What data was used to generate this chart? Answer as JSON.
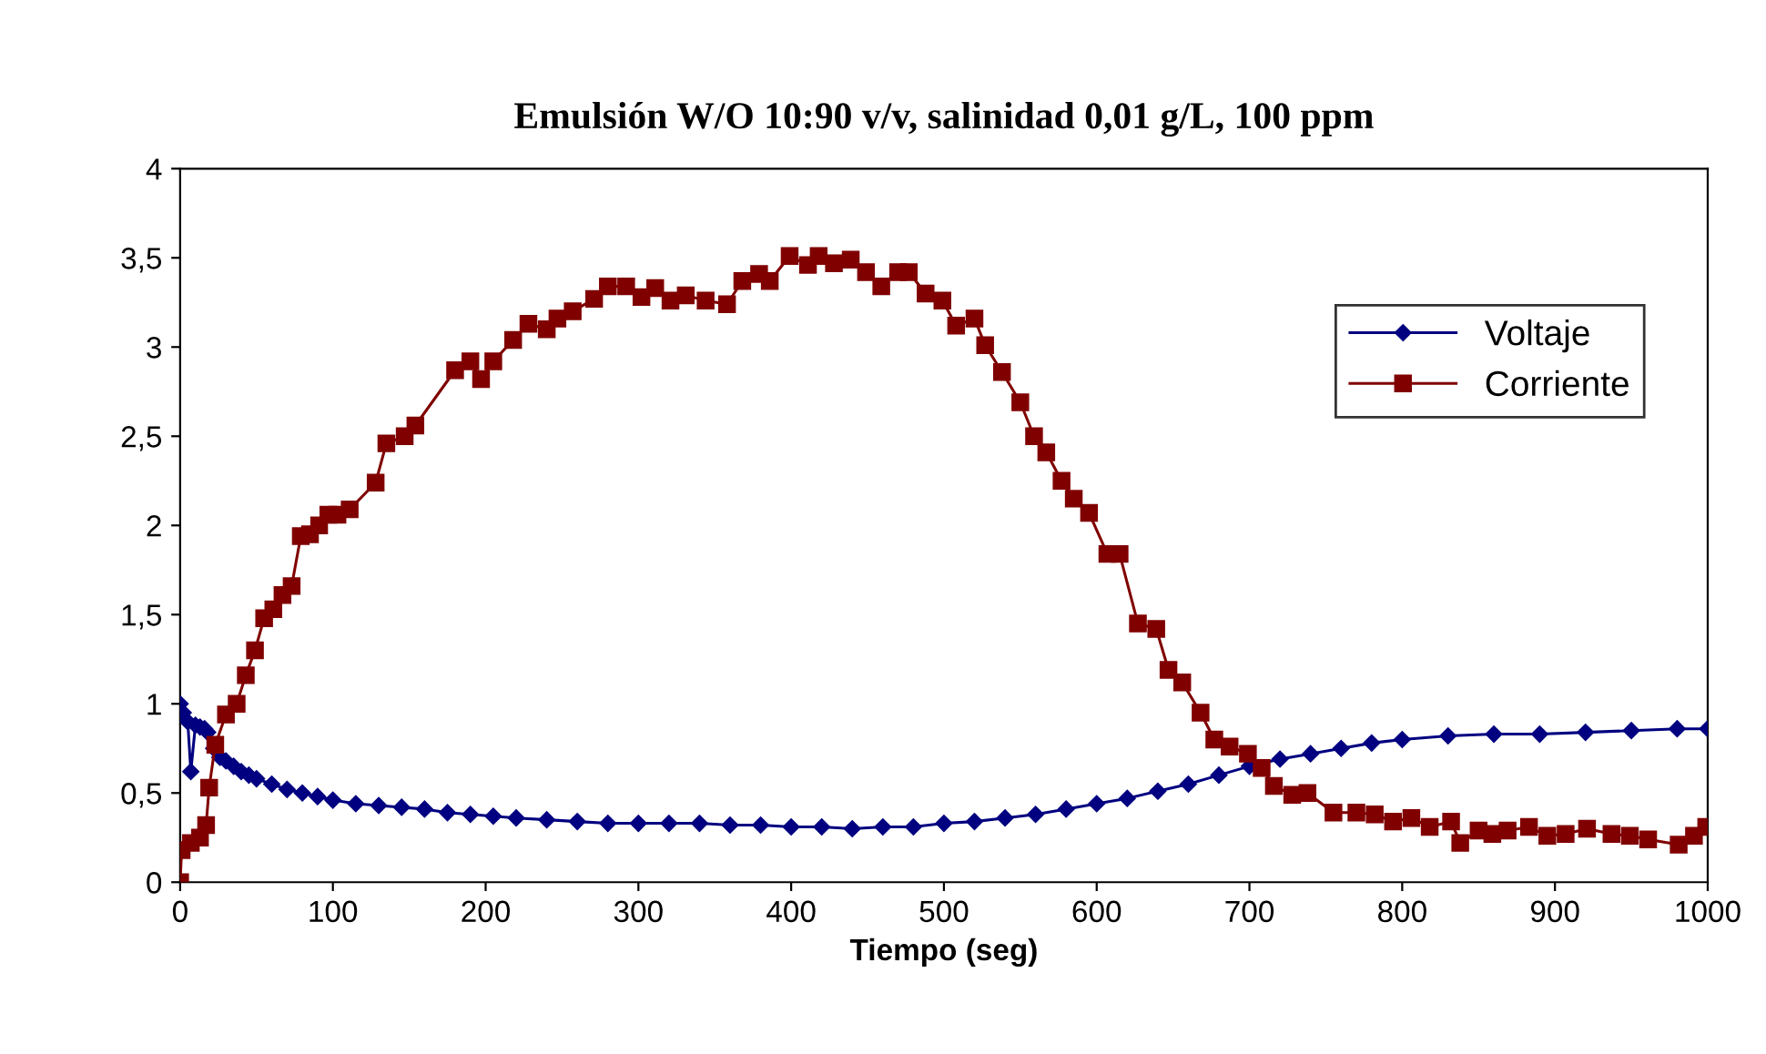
{
  "chart_data": {
    "type": "line",
    "title": "Emulsión W/O 10:90 v/v, salinidad 0,01 g/L, 100 ppm",
    "xlabel": "Tiempo (seg)",
    "xlim": [
      0,
      1000
    ],
    "xticks": [
      0,
      100,
      200,
      300,
      400,
      500,
      600,
      700,
      800,
      900,
      1000
    ],
    "ylim": [
      0,
      4
    ],
    "yticks": [
      0,
      {
        "value": 0.5,
        "label": "0,5"
      },
      1,
      {
        "value": 1.5,
        "label": "1,5"
      },
      2,
      {
        "value": 2.5,
        "label": "2,5"
      },
      3,
      {
        "value": 3.5,
        "label": "3,5"
      },
      4
    ],
    "legend": "right",
    "grid": false,
    "series": [
      {
        "name": "Voltaje",
        "color": "#000080",
        "marker": "diamond",
        "x": [
          0,
          2,
          5,
          7,
          10,
          13,
          16,
          18,
          22,
          26,
          30,
          35,
          40,
          45,
          50,
          60,
          70,
          80,
          90,
          100,
          115,
          130,
          145,
          160,
          175,
          190,
          205,
          220,
          240,
          260,
          280,
          300,
          320,
          340,
          360,
          380,
          400,
          420,
          440,
          460,
          480,
          500,
          520,
          540,
          560,
          580,
          600,
          620,
          640,
          660,
          680,
          700,
          720,
          740,
          760,
          780,
          800,
          830,
          860,
          890,
          920,
          950,
          980,
          1000
        ],
        "values": [
          1.0,
          0.95,
          0.9,
          0.62,
          0.88,
          0.87,
          0.86,
          0.84,
          0.75,
          0.7,
          0.68,
          0.65,
          0.62,
          0.6,
          0.58,
          0.55,
          0.52,
          0.5,
          0.48,
          0.46,
          0.44,
          0.43,
          0.42,
          0.41,
          0.39,
          0.38,
          0.37,
          0.36,
          0.35,
          0.34,
          0.33,
          0.33,
          0.33,
          0.33,
          0.32,
          0.32,
          0.31,
          0.31,
          0.3,
          0.31,
          0.31,
          0.33,
          0.34,
          0.36,
          0.38,
          0.41,
          0.44,
          0.47,
          0.51,
          0.55,
          0.6,
          0.65,
          0.69,
          0.72,
          0.75,
          0.78,
          0.8,
          0.82,
          0.83,
          0.83,
          0.84,
          0.85,
          0.86,
          0.86
        ]
      },
      {
        "name": "Corriente",
        "color": "#800000",
        "marker": "square",
        "x": [
          0,
          1,
          7,
          13,
          17,
          19,
          23,
          30,
          37,
          43,
          49,
          55,
          61,
          67,
          73,
          79,
          85,
          91,
          97,
          103,
          111,
          128,
          135,
          147,
          154,
          180,
          190,
          197,
          205,
          218,
          228,
          240,
          247,
          257,
          271,
          280,
          292,
          302,
          311,
          321,
          331,
          344,
          358,
          368,
          379,
          386,
          399,
          411,
          418,
          428,
          439,
          449,
          459,
          470,
          477,
          488,
          499,
          508,
          520,
          527,
          538,
          550,
          559,
          567,
          577,
          585,
          595,
          607,
          615,
          627,
          639,
          647,
          656,
          668,
          677,
          687,
          699,
          708,
          716,
          728,
          738,
          755,
          770,
          782,
          794,
          806,
          818,
          832,
          838,
          850,
          859,
          869,
          883,
          895,
          907,
          921,
          937,
          949,
          961,
          981,
          991,
          999
        ],
        "values": [
          0.0,
          0.18,
          0.22,
          0.25,
          0.32,
          0.53,
          0.77,
          0.94,
          1.0,
          1.16,
          1.3,
          1.48,
          1.53,
          1.61,
          1.66,
          1.94,
          1.95,
          2.0,
          2.06,
          2.06,
          2.09,
          2.24,
          2.46,
          2.5,
          2.56,
          2.87,
          2.92,
          2.82,
          2.92,
          3.04,
          3.13,
          3.1,
          3.16,
          3.2,
          3.27,
          3.34,
          3.34,
          3.28,
          3.33,
          3.26,
          3.29,
          3.26,
          3.24,
          3.37,
          3.41,
          3.37,
          3.51,
          3.46,
          3.51,
          3.47,
          3.49,
          3.42,
          3.34,
          3.42,
          3.42,
          3.3,
          3.26,
          3.12,
          3.16,
          3.01,
          2.86,
          2.69,
          2.5,
          2.41,
          2.25,
          2.15,
          2.07,
          1.84,
          1.84,
          1.45,
          1.42,
          1.19,
          1.12,
          0.95,
          0.8,
          0.76,
          0.72,
          0.64,
          0.54,
          0.49,
          0.5,
          0.39,
          0.39,
          0.38,
          0.34,
          0.36,
          0.31,
          0.34,
          0.22,
          0.29,
          0.27,
          0.29,
          0.31,
          0.26,
          0.27,
          0.3,
          0.27,
          0.26,
          0.24,
          0.21,
          0.26,
          0.31
        ]
      }
    ]
  }
}
